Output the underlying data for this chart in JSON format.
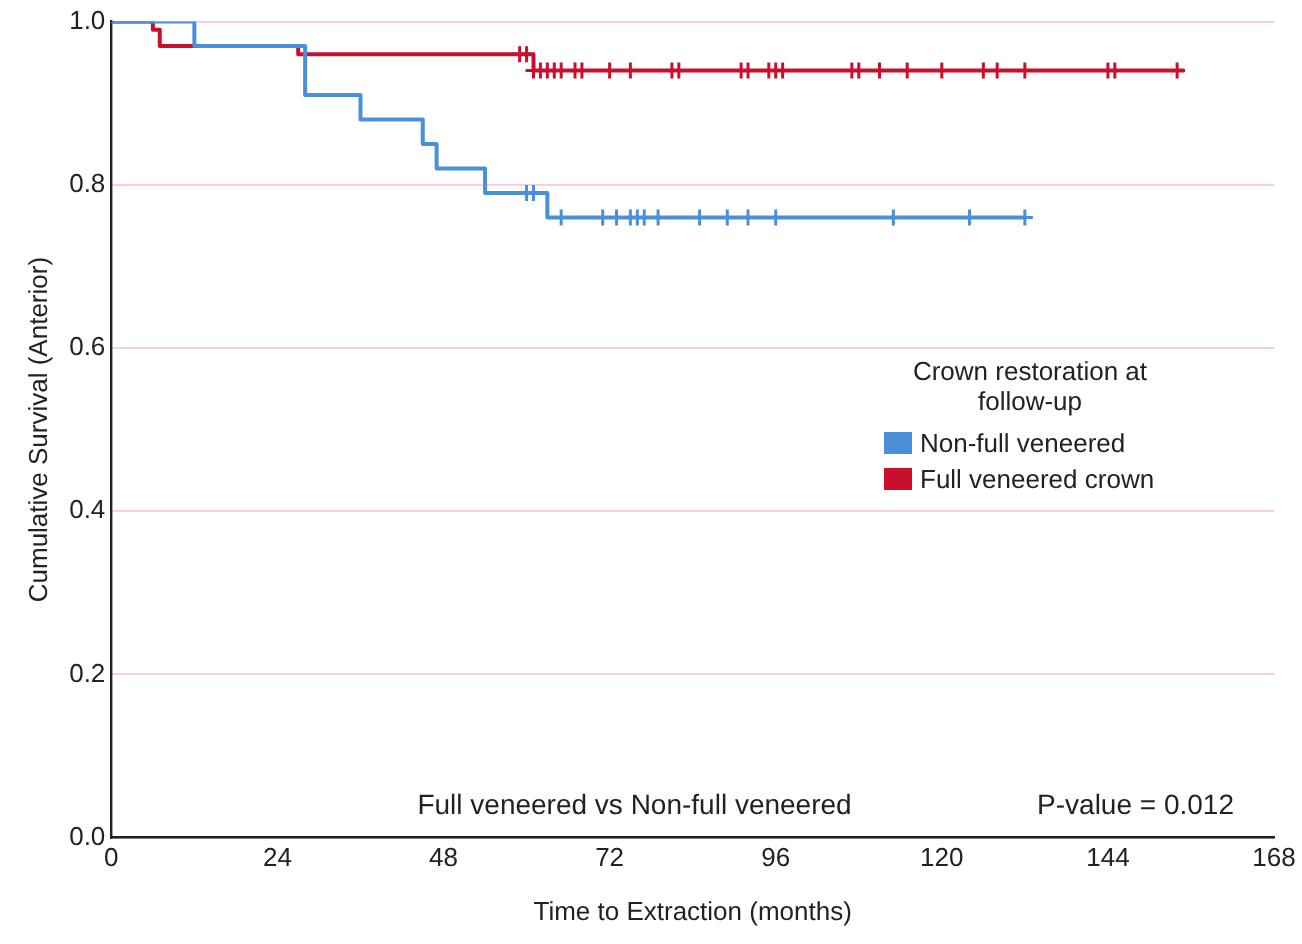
{
  "chart_data": {
    "type": "step",
    "xlabel": "Time to Extraction (months)",
    "ylabel": "Cumulative Survival (Anterior)",
    "legend_title": "Crown restoration at follow-up",
    "legend": "right",
    "grid": "y",
    "marker": "none",
    "xlim": [
      0,
      168
    ],
    "xticks": [
      0,
      24,
      48,
      72,
      96,
      120,
      144,
      168
    ],
    "ylim": [
      0,
      1
    ],
    "yticks": [
      {
        "value": 0,
        "label": "0.0"
      },
      {
        "value": 0.2,
        "label": "0.2"
      },
      {
        "value": 0.4,
        "label": "0.4"
      },
      {
        "value": 0.6,
        "label": "0.6"
      },
      {
        "value": 0.8,
        "label": "0.8"
      },
      {
        "value": 1,
        "label": "1.0"
      }
    ],
    "series": [
      {
        "name": "Non-full veneered",
        "color": "#4a90d9",
        "x": [
          0,
          12,
          28,
          36,
          45,
          47,
          54,
          63,
          132
        ],
        "values": [
          1,
          0.97,
          0.91,
          0.88,
          0.85,
          0.82,
          0.79,
          0.76,
          0.76
        ]
      },
      {
        "name": "Full veneered crown",
        "color": "#c8102e",
        "x": [
          0,
          6,
          7,
          27,
          61,
          155
        ],
        "values": [
          1,
          0.99,
          0.97,
          0.96,
          0.94,
          0.94
        ]
      },
      {
        "type": "scatter",
        "marker": "cross",
        "color": "#4a90d9",
        "x": [
          60,
          61,
          65,
          71,
          73,
          75,
          76,
          77,
          79,
          85,
          89,
          92,
          96,
          113,
          124,
          132
        ],
        "values": [
          0.79,
          0.79,
          0.76,
          0.76,
          0.76,
          0.76,
          0.76,
          0.76,
          0.76,
          0.76,
          0.76,
          0.76,
          0.76,
          0.76,
          0.76,
          0.76
        ]
      },
      {
        "type": "scatter",
        "marker": "cross",
        "color": "#c8102e",
        "x": [
          59,
          60,
          61,
          62,
          63,
          64,
          65,
          67,
          68,
          72,
          75,
          81,
          82,
          91,
          92,
          95,
          96,
          97,
          107,
          108,
          111,
          115,
          120,
          126,
          128,
          132,
          144,
          145,
          154
        ],
        "values": [
          0.96,
          0.96,
          0.94,
          0.94,
          0.94,
          0.94,
          0.94,
          0.94,
          0.94,
          0.94,
          0.94,
          0.94,
          0.94,
          0.94,
          0.94,
          0.94,
          0.94,
          0.94,
          0.94,
          0.94,
          0.94,
          0.94,
          0.94,
          0.94,
          0.94,
          0.94,
          0.94,
          0.94,
          0.94
        ]
      }
    ],
    "annotations": [
      "Full veneered vs Non-full veneered",
      "P-value = 0.012"
    ]
  }
}
